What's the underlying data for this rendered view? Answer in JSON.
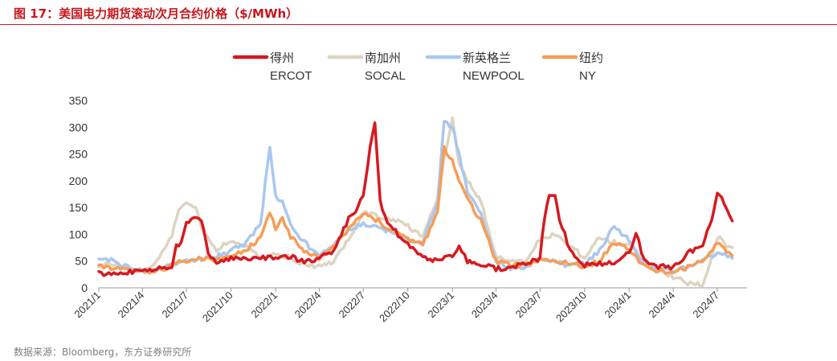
{
  "header": {
    "title": "图 17：美国电力期货滚动次月合约价格（$/MWh）"
  },
  "footer": {
    "source": "数据来源：Bloomberg，东方证券研究所"
  },
  "chart_data": {
    "type": "line",
    "xlabel": "",
    "ylabel": "",
    "ylim": [
      0,
      350
    ],
    "yticks": [
      0,
      50,
      100,
      150,
      200,
      250,
      300,
      350
    ],
    "x_tick_labels": [
      "2021/1",
      "2021/4",
      "2021/7",
      "2021/10",
      "2022/1",
      "2022/4",
      "2022/7",
      "2022/10",
      "2023/1",
      "2023/4",
      "2023/7",
      "2023/10",
      "2024/1",
      "2024/4",
      "2024/7"
    ],
    "grid": false,
    "legend_position": "top",
    "series": [
      {
        "name": "得州 ERCOT",
        "legend_cn": "得州",
        "legend_en": "ERCOT",
        "color": "#d71920",
        "points": [
          [
            "2021-01-01",
            26
          ],
          [
            "2021-02-01",
            25
          ],
          [
            "2021-03-01",
            30
          ],
          [
            "2021-04-01",
            32
          ],
          [
            "2021-05-01",
            36
          ],
          [
            "2021-06-01",
            40
          ],
          [
            "2021-06-10",
            80
          ],
          [
            "2021-06-20",
            85
          ],
          [
            "2021-07-01",
            120
          ],
          [
            "2021-07-20",
            130
          ],
          [
            "2021-08-01",
            125
          ],
          [
            "2021-08-15",
            65
          ],
          [
            "2021-09-01",
            50
          ],
          [
            "2021-10-01",
            55
          ],
          [
            "2021-11-01",
            55
          ],
          [
            "2021-12-01",
            56
          ],
          [
            "2022-01-01",
            55
          ],
          [
            "2022-02-01",
            58
          ],
          [
            "2022-03-01",
            48
          ],
          [
            "2022-04-01",
            55
          ],
          [
            "2022-05-01",
            70
          ],
          [
            "2022-06-01",
            130
          ],
          [
            "2022-06-20",
            150
          ],
          [
            "2022-07-01",
            175
          ],
          [
            "2022-07-15",
            260
          ],
          [
            "2022-07-25",
            310
          ],
          [
            "2022-08-05",
            160
          ],
          [
            "2022-08-20",
            120
          ],
          [
            "2022-09-01",
            110
          ],
          [
            "2022-10-01",
            80
          ],
          [
            "2022-11-01",
            55
          ],
          [
            "2022-12-01",
            52
          ],
          [
            "2023-01-01",
            60
          ],
          [
            "2023-01-15",
            80
          ],
          [
            "2023-02-01",
            50
          ],
          [
            "2023-03-01",
            45
          ],
          [
            "2023-04-01",
            35
          ],
          [
            "2023-05-01",
            38
          ],
          [
            "2023-06-01",
            45
          ],
          [
            "2023-07-01",
            55
          ],
          [
            "2023-07-10",
            130
          ],
          [
            "2023-07-20",
            170
          ],
          [
            "2023-08-01",
            175
          ],
          [
            "2023-08-10",
            130
          ],
          [
            "2023-09-01",
            70
          ],
          [
            "2023-10-01",
            42
          ],
          [
            "2023-11-01",
            45
          ],
          [
            "2023-12-01",
            48
          ],
          [
            "2024-01-01",
            65
          ],
          [
            "2024-01-15",
            105
          ],
          [
            "2024-02-01",
            50
          ],
          [
            "2024-03-01",
            40
          ],
          [
            "2024-04-01",
            38
          ],
          [
            "2024-05-01",
            65
          ],
          [
            "2024-06-01",
            80
          ],
          [
            "2024-06-20",
            130
          ],
          [
            "2024-07-01",
            180
          ],
          [
            "2024-07-15",
            160
          ],
          [
            "2024-08-01",
            125
          ]
        ]
      },
      {
        "name": "南加州 SOCAL",
        "legend_cn": "南加州",
        "legend_en": "SOCAL",
        "color": "#ddd4c0",
        "points": [
          [
            "2021-01-01",
            42
          ],
          [
            "2021-02-01",
            45
          ],
          [
            "2021-03-01",
            38
          ],
          [
            "2021-04-01",
            32
          ],
          [
            "2021-05-01",
            48
          ],
          [
            "2021-06-01",
            95
          ],
          [
            "2021-06-15",
            150
          ],
          [
            "2021-07-01",
            160
          ],
          [
            "2021-07-20",
            150
          ],
          [
            "2021-08-01",
            110
          ],
          [
            "2021-09-01",
            70
          ],
          [
            "2021-10-01",
            90
          ],
          [
            "2021-11-01",
            78
          ],
          [
            "2021-12-01",
            55
          ],
          [
            "2022-01-01",
            65
          ],
          [
            "2022-02-01",
            55
          ],
          [
            "2022-03-01",
            45
          ],
          [
            "2022-04-01",
            40
          ],
          [
            "2022-05-01",
            48
          ],
          [
            "2022-06-01",
            90
          ],
          [
            "2022-07-01",
            140
          ],
          [
            "2022-08-01",
            135
          ],
          [
            "2022-09-01",
            128
          ],
          [
            "2022-10-01",
            115
          ],
          [
            "2022-11-01",
            95
          ],
          [
            "2022-12-01",
            165
          ],
          [
            "2022-12-15",
            240
          ],
          [
            "2023-01-01",
            315
          ],
          [
            "2023-01-15",
            230
          ],
          [
            "2023-02-01",
            200
          ],
          [
            "2023-03-01",
            160
          ],
          [
            "2023-04-01",
            60
          ],
          [
            "2023-05-01",
            48
          ],
          [
            "2023-06-01",
            50
          ],
          [
            "2023-07-01",
            90
          ],
          [
            "2023-08-01",
            100
          ],
          [
            "2023-09-01",
            80
          ],
          [
            "2023-10-01",
            55
          ],
          [
            "2023-11-01",
            95
          ],
          [
            "2023-12-01",
            85
          ],
          [
            "2024-01-01",
            80
          ],
          [
            "2024-02-01",
            50
          ],
          [
            "2024-03-01",
            30
          ],
          [
            "2024-04-01",
            20
          ],
          [
            "2024-05-01",
            10
          ],
          [
            "2024-06-01",
            5
          ],
          [
            "2024-07-01",
            95
          ],
          [
            "2024-07-20",
            80
          ],
          [
            "2024-08-01",
            75
          ]
        ]
      },
      {
        "name": "新英格兰 NEWPOOL",
        "legend_cn": "新英格兰",
        "legend_en": "NEWPOOL",
        "color": "#a9c7f0",
        "points": [
          [
            "2021-01-01",
            55
          ],
          [
            "2021-02-01",
            50
          ],
          [
            "2021-03-01",
            40
          ],
          [
            "2021-04-01",
            32
          ],
          [
            "2021-05-01",
            34
          ],
          [
            "2021-06-01",
            45
          ],
          [
            "2021-07-01",
            52
          ],
          [
            "2021-08-01",
            55
          ],
          [
            "2021-09-01",
            58
          ],
          [
            "2021-10-01",
            70
          ],
          [
            "2021-11-01",
            85
          ],
          [
            "2021-12-01",
            120
          ],
          [
            "2021-12-20",
            265
          ],
          [
            "2022-01-01",
            170
          ],
          [
            "2022-01-15",
            160
          ],
          [
            "2022-02-01",
            120
          ],
          [
            "2022-03-01",
            85
          ],
          [
            "2022-04-01",
            60
          ],
          [
            "2022-05-01",
            80
          ],
          [
            "2022-06-01",
            110
          ],
          [
            "2022-07-01",
            120
          ],
          [
            "2022-08-01",
            115
          ],
          [
            "2022-09-01",
            100
          ],
          [
            "2022-10-01",
            90
          ],
          [
            "2022-11-01",
            85
          ],
          [
            "2022-12-01",
            160
          ],
          [
            "2022-12-15",
            310
          ],
          [
            "2023-01-01",
            300
          ],
          [
            "2023-01-15",
            250
          ],
          [
            "2023-02-01",
            180
          ],
          [
            "2023-03-01",
            140
          ],
          [
            "2023-04-01",
            50
          ],
          [
            "2023-05-01",
            35
          ],
          [
            "2023-06-01",
            38
          ],
          [
            "2023-07-01",
            55
          ],
          [
            "2023-08-01",
            48
          ],
          [
            "2023-09-01",
            40
          ],
          [
            "2023-10-01",
            45
          ],
          [
            "2023-11-01",
            70
          ],
          [
            "2023-12-01",
            115
          ],
          [
            "2024-01-01",
            90
          ],
          [
            "2024-02-01",
            45
          ],
          [
            "2024-03-01",
            35
          ],
          [
            "2024-04-01",
            32
          ],
          [
            "2024-05-01",
            40
          ],
          [
            "2024-06-01",
            55
          ],
          [
            "2024-07-01",
            65
          ],
          [
            "2024-08-01",
            55
          ]
        ]
      },
      {
        "name": "纽约 NY",
        "legend_cn": "纽约",
        "legend_en": "NY",
        "color": "#f79d55",
        "points": [
          [
            "2021-01-01",
            40
          ],
          [
            "2021-02-01",
            38
          ],
          [
            "2021-03-01",
            34
          ],
          [
            "2021-04-01",
            30
          ],
          [
            "2021-05-01",
            32
          ],
          [
            "2021-06-01",
            42
          ],
          [
            "2021-07-01",
            52
          ],
          [
            "2021-08-01",
            55
          ],
          [
            "2021-09-01",
            52
          ],
          [
            "2021-10-01",
            58
          ],
          [
            "2021-11-01",
            70
          ],
          [
            "2021-12-01",
            95
          ],
          [
            "2021-12-20",
            140
          ],
          [
            "2022-01-01",
            110
          ],
          [
            "2022-01-15",
            130
          ],
          [
            "2022-02-01",
            95
          ],
          [
            "2022-03-01",
            70
          ],
          [
            "2022-04-01",
            55
          ],
          [
            "2022-05-01",
            75
          ],
          [
            "2022-06-01",
            110
          ],
          [
            "2022-07-01",
            140
          ],
          [
            "2022-08-01",
            125
          ],
          [
            "2022-09-01",
            105
          ],
          [
            "2022-10-01",
            90
          ],
          [
            "2022-11-01",
            80
          ],
          [
            "2022-12-01",
            140
          ],
          [
            "2022-12-15",
            260
          ],
          [
            "2023-01-01",
            240
          ],
          [
            "2023-01-15",
            200
          ],
          [
            "2023-02-01",
            165
          ],
          [
            "2023-03-01",
            125
          ],
          [
            "2023-04-01",
            50
          ],
          [
            "2023-05-01",
            42
          ],
          [
            "2023-06-01",
            42
          ],
          [
            "2023-07-01",
            55
          ],
          [
            "2023-08-01",
            50
          ],
          [
            "2023-09-01",
            45
          ],
          [
            "2023-10-01",
            40
          ],
          [
            "2023-11-01",
            50
          ],
          [
            "2023-12-01",
            85
          ],
          [
            "2024-01-01",
            70
          ],
          [
            "2024-02-01",
            40
          ],
          [
            "2024-03-01",
            32
          ],
          [
            "2024-04-01",
            30
          ],
          [
            "2024-05-01",
            38
          ],
          [
            "2024-06-01",
            50
          ],
          [
            "2024-07-01",
            85
          ],
          [
            "2024-07-20",
            65
          ],
          [
            "2024-08-01",
            60
          ]
        ]
      }
    ]
  }
}
